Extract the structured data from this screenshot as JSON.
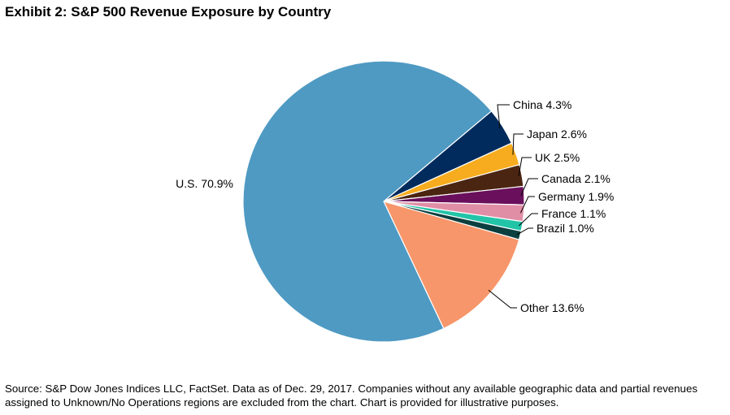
{
  "title": "Exhibit 2: S&P 500 Revenue Exposure by Country",
  "source": "Source: S&P Dow Jones Indices LLC, FactSet. Data as of Dec. 29, 2017. Companies without any available geographic data and partial revenues assigned to Unknown/No Operations regions are excluded from the chart. Chart is provided for illustrative purposes.",
  "chart_data": {
    "type": "pie",
    "title": "Exhibit 2: S&P 500 Revenue Exposure by Country",
    "start_angle_deg": 50,
    "direction": "clockwise",
    "slices": [
      {
        "name": "China",
        "value": 4.3,
        "label": "China 4.3%",
        "color": "#002b5c"
      },
      {
        "name": "Japan",
        "value": 2.6,
        "label": "Japan 2.6%",
        "color": "#f6ac1e"
      },
      {
        "name": "UK",
        "value": 2.5,
        "label": "UK 2.5%",
        "color": "#4a2512"
      },
      {
        "name": "Canada",
        "value": 2.1,
        "label": "Canada 2.1%",
        "color": "#6a0f5b"
      },
      {
        "name": "Germany",
        "value": 1.9,
        "label": "Germany 1.9%",
        "color": "#e08ea6"
      },
      {
        "name": "France",
        "value": 1.1,
        "label": "France 1.1%",
        "color": "#22c4a8"
      },
      {
        "name": "Brazil",
        "value": 1.0,
        "label": "Brazil 1.0%",
        "color": "#0c3f3f"
      },
      {
        "name": "Other",
        "value": 13.6,
        "label": "Other 13.6%",
        "color": "#f7966a"
      },
      {
        "name": "U.S.",
        "value": 70.9,
        "label": "U.S. 70.9%",
        "color": "#4f9ac3"
      }
    ]
  }
}
